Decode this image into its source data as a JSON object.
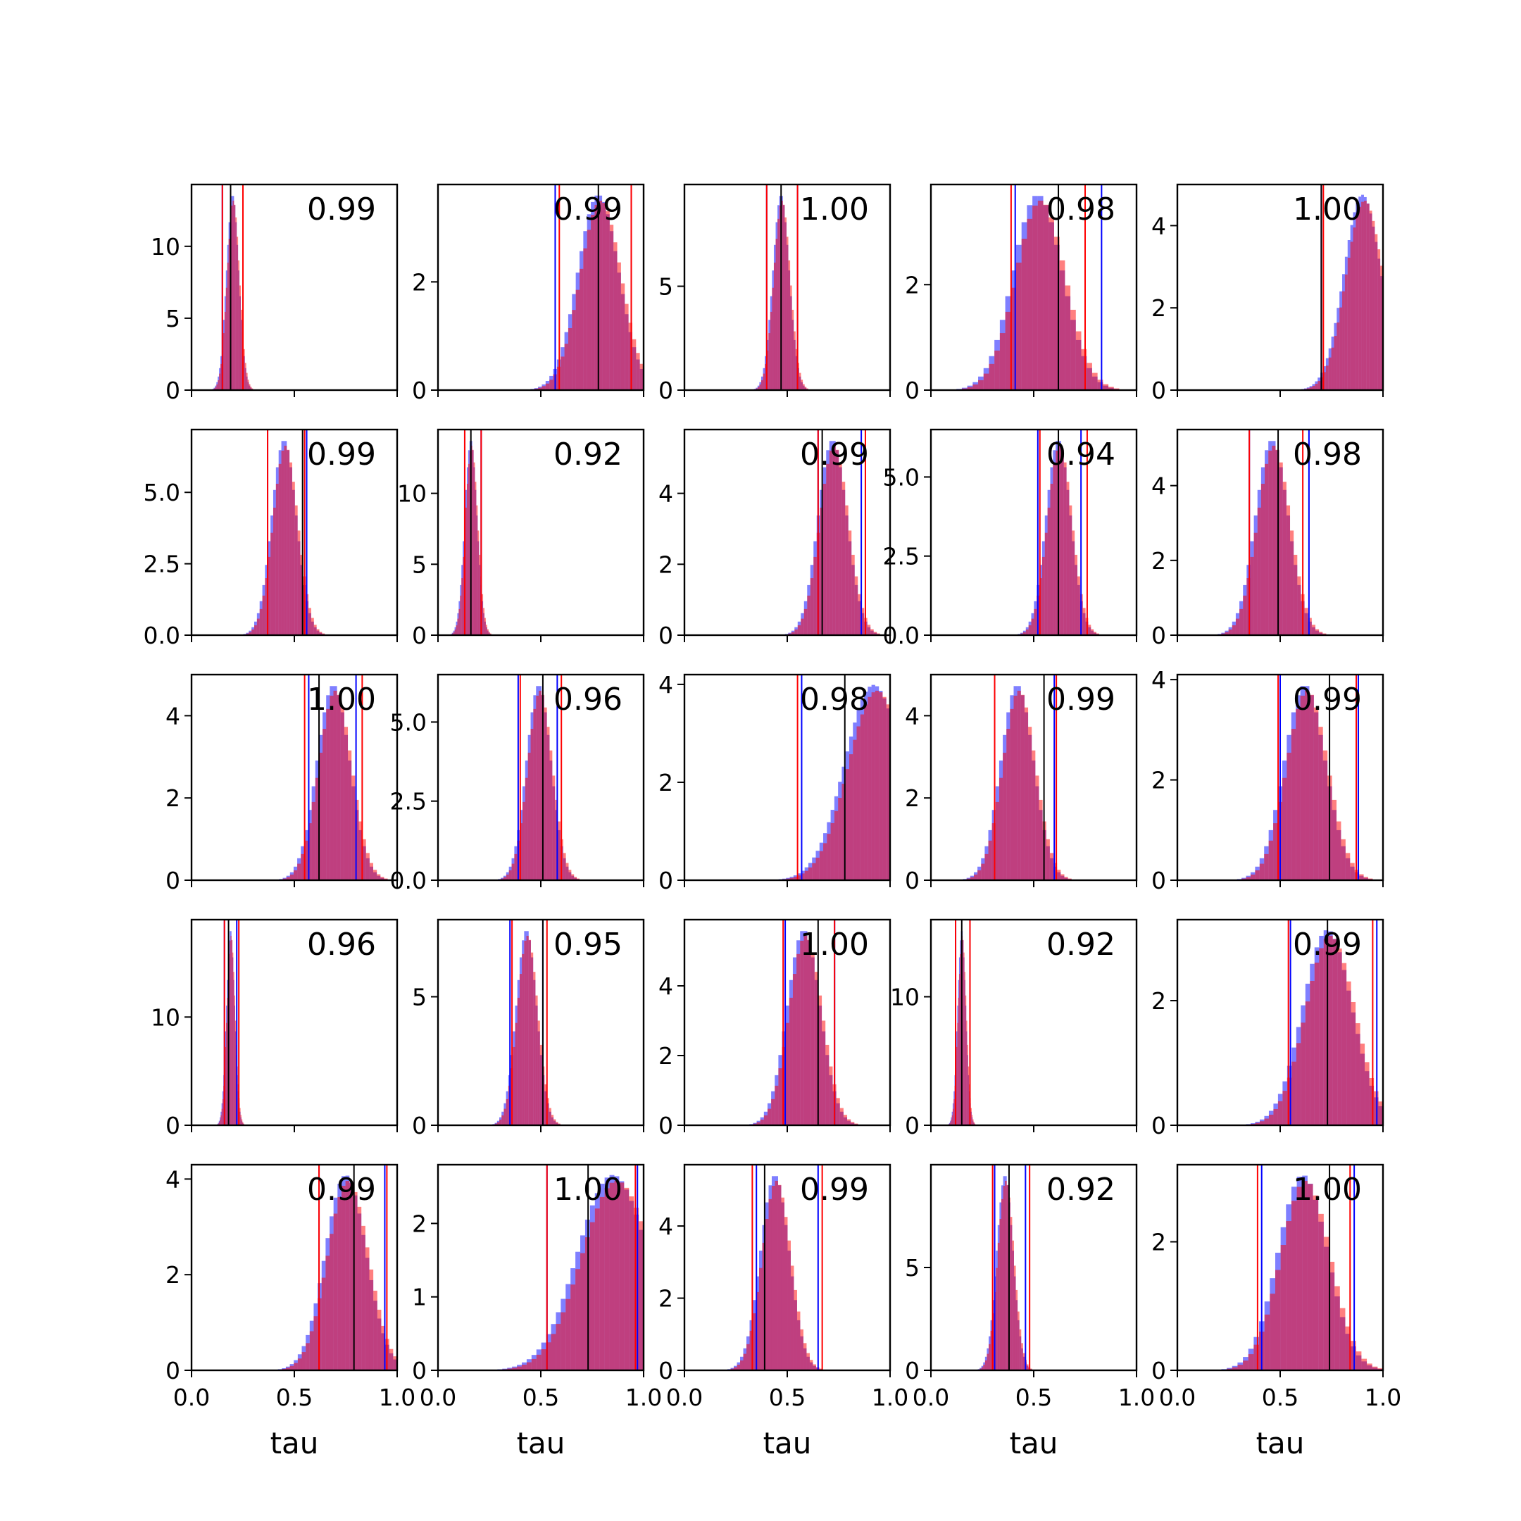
{
  "figure": {
    "rows": 5,
    "cols": 5,
    "xlim": [
      0.0,
      1.0
    ],
    "x_ticks": [
      "0.0",
      "0.5",
      "1.0"
    ],
    "xlabel": "tau",
    "colors": {
      "hist_a": "#0000ff",
      "hist_b": "#ff0000",
      "overlap": "#c43a70",
      "median": "#000000",
      "ci_a": "#0000ff",
      "ci_b": "#ff0000"
    },
    "hist_alpha": 0.5
  },
  "chart_data": [
    {
      "type": "histogram",
      "annotation": "0.99",
      "center": 0.2,
      "sd": 0.03,
      "ymax": 14.3,
      "yticks": [
        0,
        5,
        10
      ],
      "ytick_labels": [
        "0",
        "5",
        "10"
      ],
      "vlines": {
        "median": 0.19,
        "blue": [
          0.15,
          0.25
        ],
        "red": [
          0.15,
          0.25
        ]
      }
    },
    {
      "type": "histogram",
      "annotation": "0.99",
      "center": 0.78,
      "sd": 0.1,
      "ymax": 3.8,
      "yticks": [
        0,
        2
      ],
      "ytick_labels": [
        "0",
        "2"
      ],
      "vlines": {
        "median": 0.78,
        "blue": [
          0.57,
          0.94
        ],
        "red": [
          0.59,
          0.94
        ]
      }
    },
    {
      "type": "histogram",
      "annotation": "1.00",
      "center": 0.47,
      "sd": 0.04,
      "ymax": 9.9,
      "yticks": [
        0,
        5
      ],
      "ytick_labels": [
        "0",
        "5"
      ],
      "vlines": {
        "median": 0.47,
        "blue": [
          0.4,
          0.55
        ],
        "red": [
          0.4,
          0.55
        ]
      }
    },
    {
      "type": "histogram",
      "annotation": "0.98",
      "center": 0.52,
      "sd": 0.12,
      "ymax": 3.9,
      "yticks": [
        0,
        2
      ],
      "ytick_labels": [
        "0",
        "2"
      ],
      "vlines": {
        "median": 0.62,
        "blue": [
          0.41,
          0.83
        ],
        "red": [
          0.39,
          0.75
        ]
      }
    },
    {
      "type": "histogram",
      "annotation": "1.00",
      "center": 0.9,
      "sd": 0.09,
      "ymax": 5.0,
      "yticks": [
        0,
        2,
        4
      ],
      "ytick_labels": [
        "0",
        "2",
        "4"
      ],
      "vlines": {
        "median": 0.7,
        "blue": [
          0.7,
          1.0
        ],
        "red": [
          0.71,
          1.0
        ]
      }
    },
    {
      "type": "histogram",
      "annotation": "0.99",
      "center": 0.45,
      "sd": 0.06,
      "ymax": 7.2,
      "yticks": [
        0,
        2.5,
        5.0
      ],
      "ytick_labels": [
        "0.0",
        "2.5",
        "5.0"
      ],
      "vlines": {
        "median": 0.54,
        "blue": [
          0.37,
          0.56
        ],
        "red": [
          0.37,
          0.55
        ]
      }
    },
    {
      "type": "histogram",
      "annotation": "0.92",
      "center": 0.16,
      "sd": 0.03,
      "ymax": 14.5,
      "yticks": [
        0,
        5,
        10
      ],
      "ytick_labels": [
        "0",
        "5",
        "10"
      ],
      "vlines": {
        "median": 0.16,
        "blue": [
          0.13,
          0.21
        ],
        "red": [
          0.13,
          0.21
        ]
      }
    },
    {
      "type": "histogram",
      "annotation": "0.99",
      "center": 0.72,
      "sd": 0.07,
      "ymax": 5.8,
      "yticks": [
        0,
        2,
        4
      ],
      "ytick_labels": [
        "0",
        "2",
        "4"
      ],
      "vlines": {
        "median": 0.67,
        "blue": [
          0.65,
          0.86
        ],
        "red": [
          0.65,
          0.88
        ]
      }
    },
    {
      "type": "histogram",
      "annotation": "0.94",
      "center": 0.62,
      "sd": 0.06,
      "ymax": 6.5,
      "yticks": [
        0,
        2.5,
        5.0
      ],
      "ytick_labels": [
        "0.0",
        "2.5",
        "5.0"
      ],
      "vlines": {
        "median": 0.62,
        "blue": [
          0.52,
          0.73
        ],
        "red": [
          0.53,
          0.76
        ]
      }
    },
    {
      "type": "histogram",
      "annotation": "0.98",
      "center": 0.46,
      "sd": 0.08,
      "ymax": 5.5,
      "yticks": [
        0,
        2,
        4
      ],
      "ytick_labels": [
        "0",
        "2",
        "4"
      ],
      "vlines": {
        "median": 0.49,
        "blue": [
          0.35,
          0.64
        ],
        "red": [
          0.35,
          0.61
        ]
      }
    },
    {
      "type": "histogram",
      "annotation": "1.00",
      "center": 0.69,
      "sd": 0.08,
      "ymax": 5.0,
      "yticks": [
        0,
        2,
        4
      ],
      "ytick_labels": [
        "0",
        "2",
        "4"
      ],
      "vlines": {
        "median": 0.62,
        "blue": [
          0.57,
          0.8
        ],
        "red": [
          0.55,
          0.83
        ]
      }
    },
    {
      "type": "histogram",
      "annotation": "0.96",
      "center": 0.49,
      "sd": 0.06,
      "ymax": 6.5,
      "yticks": [
        0,
        2.5,
        5.0
      ],
      "ytick_labels": [
        "0.0",
        "2.5",
        "5.0"
      ],
      "vlines": {
        "median": 0.51,
        "blue": [
          0.39,
          0.58
        ],
        "red": [
          0.4,
          0.6
        ]
      }
    },
    {
      "type": "histogram",
      "annotation": "0.98",
      "center": 0.92,
      "sd": 0.14,
      "ymax": 4.2,
      "yticks": [
        0,
        2,
        4
      ],
      "ytick_labels": [
        "0",
        "2",
        "4"
      ],
      "vlines": {
        "median": 0.78,
        "blue": [
          0.57,
          1.0
        ],
        "red": [
          0.55,
          1.0
        ]
      }
    },
    {
      "type": "histogram",
      "annotation": "0.99",
      "center": 0.42,
      "sd": 0.08,
      "ymax": 5.0,
      "yticks": [
        0,
        2,
        4
      ],
      "ytick_labels": [
        "0",
        "2",
        "4"
      ],
      "vlines": {
        "median": 0.55,
        "blue": [
          0.31,
          0.6
        ],
        "red": [
          0.31,
          0.61
        ]
      }
    },
    {
      "type": "histogram",
      "annotation": "0.99",
      "center": 0.62,
      "sd": 0.1,
      "ymax": 4.1,
      "yticks": [
        0,
        2,
        4
      ],
      "ytick_labels": [
        "0",
        "2",
        "4"
      ],
      "vlines": {
        "median": 0.74,
        "blue": [
          0.5,
          0.88
        ],
        "red": [
          0.49,
          0.87
        ]
      }
    },
    {
      "type": "histogram",
      "annotation": "0.96",
      "center": 0.19,
      "sd": 0.02,
      "ymax": 19.0,
      "yticks": [
        0,
        10
      ],
      "ytick_labels": [
        "0",
        "10"
      ],
      "vlines": {
        "median": 0.18,
        "blue": [
          0.16,
          0.22
        ],
        "red": [
          0.16,
          0.23
        ]
      }
    },
    {
      "type": "histogram",
      "annotation": "0.95",
      "center": 0.43,
      "sd": 0.05,
      "ymax": 8.0,
      "yticks": [
        0,
        5
      ],
      "ytick_labels": [
        "0",
        "5"
      ],
      "vlines": {
        "median": 0.51,
        "blue": [
          0.35,
          0.51
        ],
        "red": [
          0.36,
          0.53
        ]
      }
    },
    {
      "type": "histogram",
      "annotation": "1.00",
      "center": 0.58,
      "sd": 0.08,
      "ymax": 5.9,
      "yticks": [
        0,
        2,
        4
      ],
      "ytick_labels": [
        "0",
        "2",
        "4"
      ],
      "vlines": {
        "median": 0.65,
        "blue": [
          0.49,
          0.73
        ],
        "red": [
          0.48,
          0.73
        ]
      }
    },
    {
      "type": "histogram",
      "annotation": "0.92",
      "center": 0.15,
      "sd": 0.02,
      "ymax": 16.0,
      "yticks": [
        0,
        10
      ],
      "ytick_labels": [
        "0",
        "10"
      ],
      "vlines": {
        "median": 0.15,
        "blue": [
          0.12,
          0.19
        ],
        "red": [
          0.12,
          0.19
        ]
      }
    },
    {
      "type": "histogram",
      "annotation": "0.99",
      "center": 0.73,
      "sd": 0.12,
      "ymax": 3.3,
      "yticks": [
        0,
        2
      ],
      "ytick_labels": [
        "0",
        "2"
      ],
      "vlines": {
        "median": 0.73,
        "blue": [
          0.55,
          0.97
        ],
        "red": [
          0.54,
          0.95
        ]
      }
    },
    {
      "type": "histogram",
      "annotation": "0.99",
      "center": 0.75,
      "sd": 0.1,
      "ymax": 4.3,
      "yticks": [
        0,
        2,
        4
      ],
      "ytick_labels": [
        "0",
        "2",
        "4"
      ],
      "vlines": {
        "median": 0.79,
        "blue": [
          0.62,
          0.94
        ],
        "red": [
          0.62,
          0.95
        ]
      }
    },
    {
      "type": "histogram",
      "annotation": "1.00",
      "center": 0.85,
      "sd": 0.17,
      "ymax": 2.8,
      "yticks": [
        0,
        1,
        2
      ],
      "ytick_labels": [
        "0",
        "1",
        "2"
      ],
      "vlines": {
        "median": 0.73,
        "blue": [
          0.53,
          0.97
        ],
        "red": [
          0.53,
          0.96
        ]
      }
    },
    {
      "type": "histogram",
      "annotation": "0.99",
      "center": 0.44,
      "sd": 0.07,
      "ymax": 5.7,
      "yticks": [
        0,
        2,
        4
      ],
      "ytick_labels": [
        "0",
        "2",
        "4"
      ],
      "vlines": {
        "median": 0.39,
        "blue": [
          0.35,
          0.65
        ],
        "red": [
          0.33,
          0.67
        ]
      }
    },
    {
      "type": "histogram",
      "annotation": "0.92",
      "center": 0.36,
      "sd": 0.04,
      "ymax": 10.0,
      "yticks": [
        0,
        5
      ],
      "ytick_labels": [
        "0",
        "5"
      ],
      "vlines": {
        "median": 0.38,
        "blue": [
          0.31,
          0.46
        ],
        "red": [
          0.3,
          0.48
        ]
      }
    },
    {
      "type": "histogram",
      "annotation": "1.00",
      "center": 0.61,
      "sd": 0.12,
      "ymax": 3.2,
      "yticks": [
        0,
        2
      ],
      "ytick_labels": [
        "0",
        "2"
      ],
      "vlines": {
        "median": 0.74,
        "blue": [
          0.41,
          0.86
        ],
        "red": [
          0.39,
          0.84
        ]
      }
    }
  ]
}
